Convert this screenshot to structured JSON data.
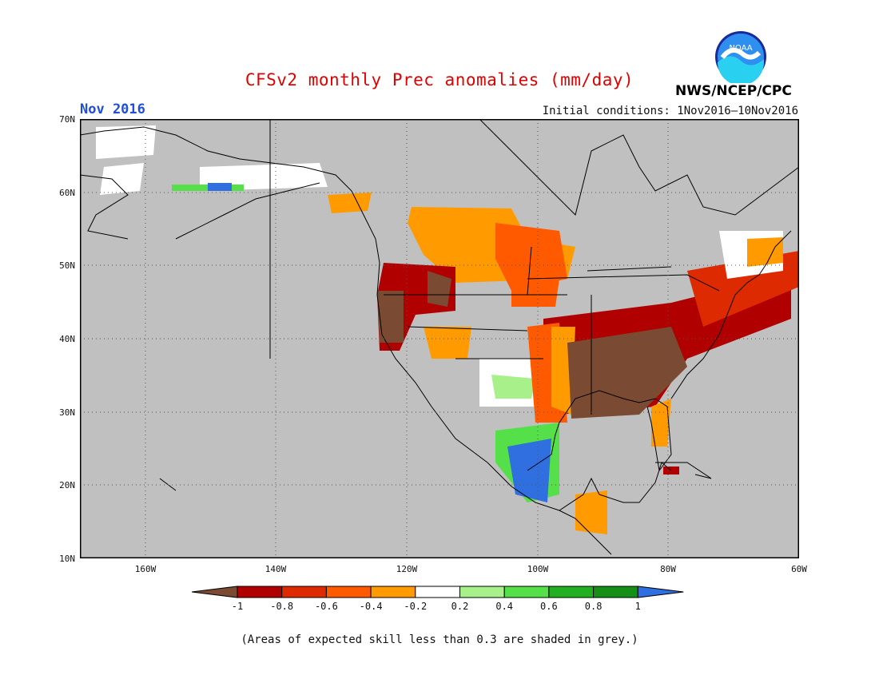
{
  "title": "CFSv2 monthly Prec anomalies (mm/day)",
  "month_label": "Nov 2016",
  "initial_conditions": "Initial conditions: 1Nov2016–10Nov2016",
  "agency": "NWS/NCEP/CPC",
  "logo_text": "NOAA",
  "footnote": "(Areas of expected skill less than 0.3 are shaded in grey.)",
  "lat_labels": [
    "70N",
    "60N",
    "50N",
    "40N",
    "30N",
    "20N",
    "10N"
  ],
  "lon_labels": [
    "160W",
    "140W",
    "120W",
    "100W",
    "80W",
    "60W"
  ],
  "map_extent": {
    "lon_min": -170,
    "lon_max": -60,
    "lat_min": 10,
    "lat_max": 70
  },
  "colorbar": {
    "labels": [
      "-1",
      "-0.8",
      "-0.6",
      "-0.4",
      "-0.2",
      "0.2",
      "0.4",
      "0.6",
      "0.8",
      "1"
    ],
    "colors": [
      "#7a4a33",
      "#b00000",
      "#dd2a00",
      "#ff5a00",
      "#ff9b00",
      "#ffffff",
      "#a8f08a",
      "#55e04a",
      "#22b022",
      "#158f15",
      "#2f6fe0"
    ]
  },
  "colors": {
    "skill_grey": "#c0c0c0"
  }
}
